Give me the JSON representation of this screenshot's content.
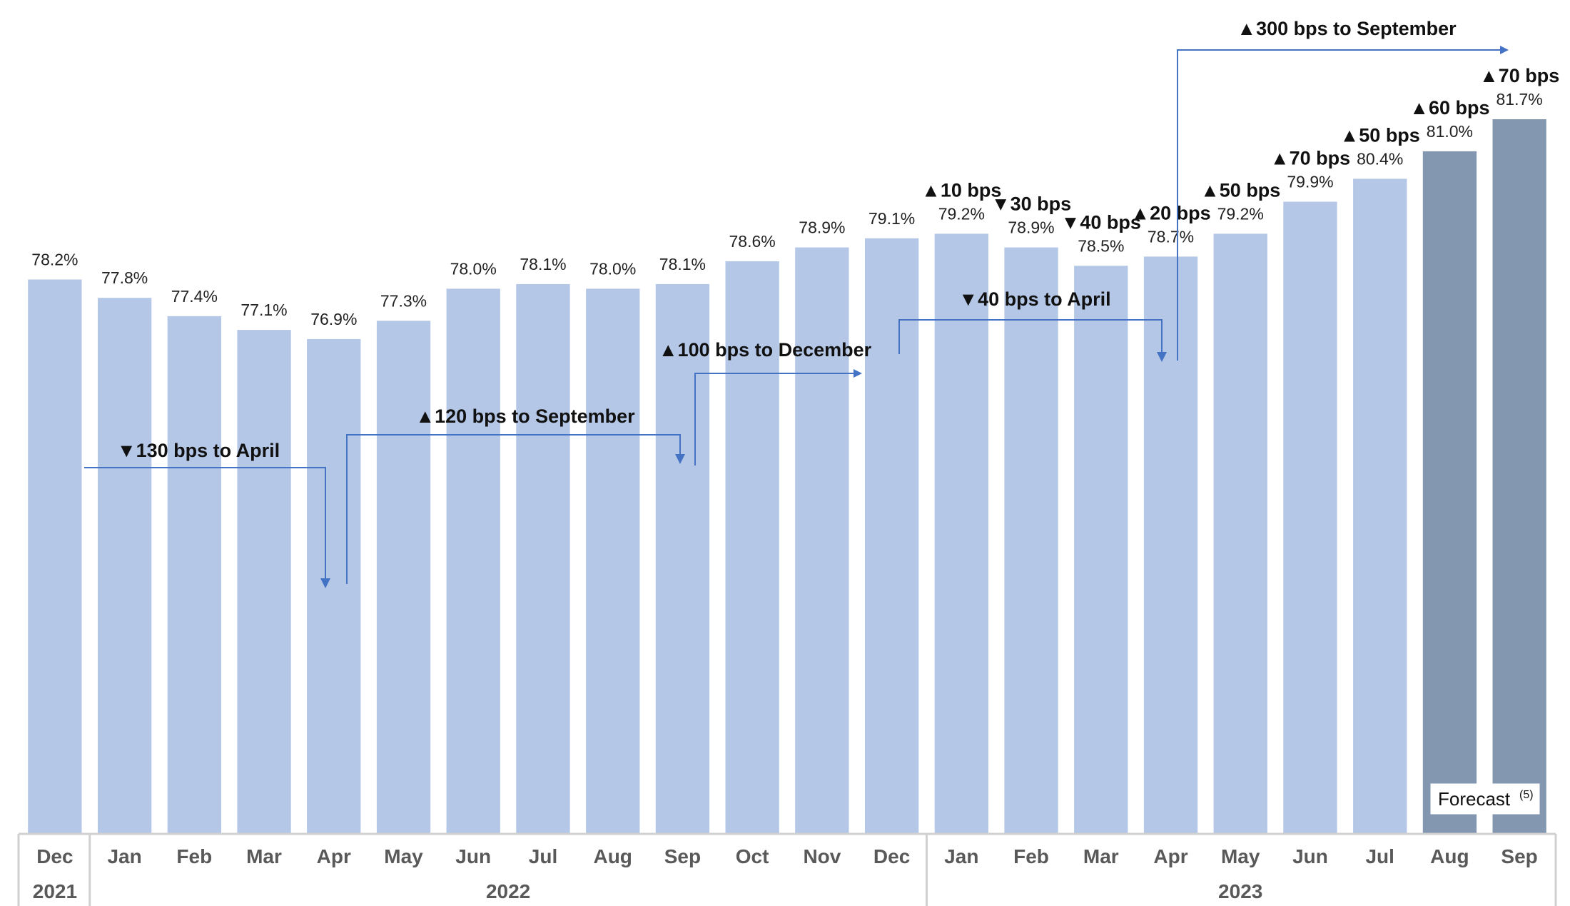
{
  "chart_data": {
    "type": "bar",
    "title": "",
    "xlabel": "",
    "ylabel": "",
    "ylim": [
      70.0,
      82.0
    ],
    "categories": [
      "Dec",
      "Jan",
      "Feb",
      "Mar",
      "Apr",
      "May",
      "Jun",
      "Jul",
      "Aug",
      "Sep",
      "Oct",
      "Nov",
      "Dec",
      "Jan",
      "Feb",
      "Mar",
      "Apr",
      "May",
      "Jun",
      "Jul",
      "Aug",
      "Sep"
    ],
    "values": [
      78.2,
      77.8,
      77.4,
      77.1,
      76.9,
      77.3,
      78.0,
      78.1,
      78.0,
      78.1,
      78.6,
      78.9,
      79.1,
      79.2,
      78.9,
      78.5,
      78.7,
      79.2,
      79.9,
      80.4,
      81.0,
      81.7
    ],
    "value_labels": [
      "78.2%",
      "77.8%",
      "77.4%",
      "77.1%",
      "76.9%",
      "77.3%",
      "78.0%",
      "78.1%",
      "78.0%",
      "78.1%",
      "78.6%",
      "78.9%",
      "79.1%",
      "79.2%",
      "78.9%",
      "78.5%",
      "78.7%",
      "79.2%",
      "79.9%",
      "80.4%",
      "81.0%",
      "81.7%"
    ],
    "forecast": [
      false,
      false,
      false,
      false,
      false,
      false,
      false,
      false,
      false,
      false,
      false,
      false,
      false,
      false,
      false,
      false,
      false,
      false,
      false,
      false,
      true,
      true
    ],
    "years": [
      {
        "label": "2021",
        "start": 0,
        "end": 0
      },
      {
        "label": "2022",
        "start": 1,
        "end": 12
      },
      {
        "label": "2023",
        "start": 13,
        "end": 21
      }
    ],
    "bar_notes": [
      {
        "index": 13,
        "dir": "up",
        "text": "10 bps"
      },
      {
        "index": 14,
        "dir": "down",
        "text": "30 bps"
      },
      {
        "index": 15,
        "dir": "down",
        "text": "40 bps"
      },
      {
        "index": 16,
        "dir": "up",
        "text": "20 bps"
      },
      {
        "index": 17,
        "dir": "up",
        "text": "50 bps"
      },
      {
        "index": 18,
        "dir": "up",
        "text": "70 bps"
      },
      {
        "index": 19,
        "dir": "up",
        "text": "50 bps"
      },
      {
        "index": 20,
        "dir": "up",
        "text": "60 bps"
      },
      {
        "index": 21,
        "dir": "up",
        "text": "70 bps"
      }
    ],
    "spans": [
      {
        "from": 0,
        "to": 4,
        "dir": "down",
        "text": "130 bps to April"
      },
      {
        "from": 4,
        "to": 9,
        "dir": "up",
        "text": "120 bps to September"
      },
      {
        "from": 9,
        "to": 12,
        "dir": "up",
        "text": "100 bps to December"
      },
      {
        "from": 12,
        "to": 16,
        "dir": "down",
        "text": "40 bps to April"
      },
      {
        "from": 16,
        "to": 21,
        "dir": "up",
        "text": "300 bps to September"
      }
    ],
    "forecast_label": "Forecast",
    "forecast_note": "(5)",
    "colors": {
      "actual": "#b4c7e7",
      "forecast": "#8497b0",
      "arrow": "#4472c4",
      "axis": "#d0d0d0"
    }
  }
}
